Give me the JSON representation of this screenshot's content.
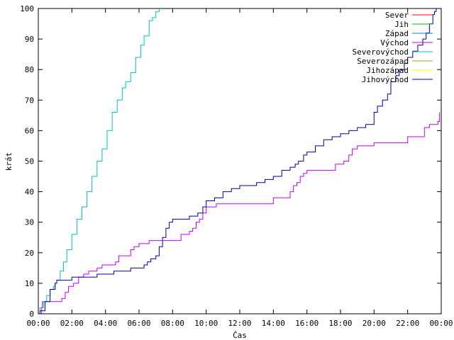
{
  "chart_data": {
    "type": "line",
    "xlabel": "Čas",
    "ylabel": "krát",
    "xlim": [
      0,
      24
    ],
    "ylim": [
      0,
      100
    ],
    "grid": false,
    "legend_position": "top-right",
    "x_ticks": [
      0,
      2,
      4,
      6,
      8,
      10,
      12,
      14,
      16,
      18,
      20,
      22,
      24
    ],
    "x_tick_labels": [
      "00:00",
      "02:00",
      "04:00",
      "06:00",
      "08:00",
      "10:00",
      "12:00",
      "14:00",
      "16:00",
      "18:00",
      "20:00",
      "22:00",
      "00:00"
    ],
    "y_ticks": [
      0,
      10,
      20,
      30,
      40,
      50,
      60,
      70,
      80,
      90,
      100
    ],
    "y_tick_labels": [
      "0",
      "10",
      "20",
      "30",
      "40",
      "50",
      "60",
      "70",
      "80",
      "90",
      "100"
    ],
    "series": [
      {
        "name": "Sever",
        "color": "#ff0000",
        "x": [],
        "y": []
      },
      {
        "name": "Jih",
        "color": "#00c000",
        "x": [],
        "y": []
      },
      {
        "name": "Západ",
        "color": "#0080ff",
        "x": [],
        "y": []
      },
      {
        "name": "Východ",
        "color": "#c000ff",
        "x": [
          0.0,
          0.2,
          0.25,
          0.6,
          1.4,
          1.6,
          1.8,
          2.1,
          2.4,
          2.7,
          3.0,
          3.3,
          3.5,
          3.8,
          4.0,
          4.3,
          4.6,
          4.8,
          5.1,
          5.5,
          5.7,
          6.0,
          6.2,
          6.4,
          6.6,
          6.8,
          7.0,
          7.3,
          7.6,
          7.9,
          8.2,
          8.5,
          8.8,
          9.0,
          9.2,
          9.4,
          9.6,
          9.8,
          10.0,
          10.3,
          10.6,
          10.8,
          11.0,
          12.0,
          12.5,
          13.0,
          14.0,
          14.4,
          14.9,
          15.0,
          15.2,
          15.4,
          15.6,
          15.8,
          16.0,
          17.0,
          17.5,
          17.7,
          18.0,
          18.2,
          18.5,
          18.7,
          19.0,
          19.3,
          20.0,
          20.5,
          21.0,
          21.5,
          22.0,
          22.5,
          23.0,
          23.3,
          23.6,
          23.8,
          23.9
        ],
        "y": [
          0,
          2,
          4,
          4,
          5,
          7,
          9,
          10,
          12,
          13,
          14,
          14,
          15,
          16,
          16,
          16,
          17,
          19,
          19,
          21,
          22,
          23,
          23,
          23,
          24,
          24,
          24,
          24,
          24,
          24,
          24,
          26,
          26,
          27,
          28,
          30,
          31,
          33,
          35,
          35,
          36,
          36,
          36,
          36,
          36,
          36,
          38,
          38,
          38,
          40,
          42,
          43,
          45,
          46,
          47,
          47,
          47,
          49,
          49,
          50,
          52,
          54,
          55,
          55,
          56,
          56,
          56,
          56,
          58,
          58,
          61,
          62,
          62,
          63,
          66
        ]
      },
      {
        "name": "Severovýchod",
        "color": "#00c0c0",
        "x": [
          0.0,
          0.1,
          0.3,
          0.5,
          0.7,
          0.9,
          1.0,
          1.1,
          1.3,
          1.5,
          1.7,
          2.0,
          2.3,
          2.6,
          2.9,
          3.2,
          3.5,
          3.8,
          4.1,
          4.4,
          4.7,
          5.0,
          5.2,
          5.5,
          5.8,
          6.1,
          6.3,
          6.6,
          6.8,
          7.0,
          7.2
        ],
        "y": [
          0,
          2,
          4,
          6,
          8,
          9,
          10,
          11,
          14,
          17,
          21,
          26,
          31,
          35,
          40,
          45,
          50,
          54,
          60,
          66,
          70,
          74,
          76,
          79,
          84,
          88,
          91,
          96,
          97,
          99,
          100
        ]
      },
      {
        "name": "Severozápad",
        "color": "#a0a000",
        "x": [],
        "y": []
      },
      {
        "name": "Jihozápad",
        "color": "#ffff00",
        "x": [],
        "y": []
      },
      {
        "name": "Jihovýchod",
        "color": "#0000a0",
        "x": [
          0.0,
          0.1,
          0.4,
          0.7,
          1.0,
          1.1,
          1.5,
          2.0,
          2.5,
          3.0,
          3.5,
          4.0,
          4.5,
          5.0,
          5.5,
          6.0,
          6.3,
          6.5,
          6.7,
          7.0,
          7.2,
          7.4,
          7.6,
          7.8,
          8.0,
          8.5,
          9.0,
          9.5,
          9.8,
          10.0,
          10.5,
          11.0,
          11.5,
          12.0,
          12.5,
          13.0,
          13.5,
          14.0,
          14.5,
          15.0,
          15.3,
          15.5,
          15.8,
          16.0,
          16.5,
          17.0,
          17.5,
          18.0,
          18.5,
          19.0,
          19.5,
          20.0,
          20.2,
          20.5,
          20.8,
          21.0,
          21.3,
          21.5,
          21.8,
          22.0,
          22.3,
          22.6,
          22.9,
          23.1,
          23.3,
          23.5,
          23.6,
          23.7
        ],
        "y": [
          0,
          1,
          4,
          8,
          10,
          11,
          11,
          12,
          12,
          12,
          13,
          13,
          14,
          14,
          15,
          15,
          16,
          17,
          18,
          19,
          22,
          25,
          28,
          30,
          31,
          31,
          32,
          33,
          35,
          37,
          38,
          40,
          41,
          42,
          42,
          43,
          44,
          45,
          47,
          48,
          49,
          50,
          52,
          53,
          55,
          57,
          58,
          59,
          60,
          61,
          62,
          66,
          68,
          70,
          72,
          76,
          78,
          80,
          82,
          84,
          86,
          88,
          90,
          92,
          95,
          98,
          99,
          100
        ]
      }
    ]
  }
}
